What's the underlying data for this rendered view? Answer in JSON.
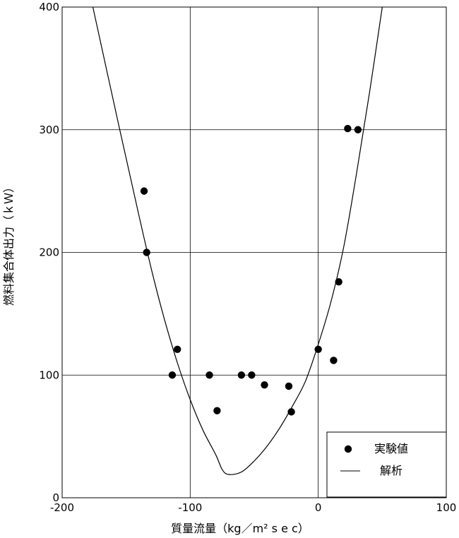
{
  "chart_data": {
    "type": "scatter",
    "title": "",
    "xlabel": "質量流量（kg／m² s e c）",
    "ylabel": "燃料集合体出力（ｋＷ）",
    "xlim": [
      -200,
      100
    ],
    "ylim": [
      0,
      400
    ],
    "xticks": [
      -200,
      -100,
      0,
      100
    ],
    "yticks": [
      0,
      100,
      200,
      300,
      400
    ],
    "grid": true,
    "legend_position": "bottom-right",
    "series": [
      {
        "name": "実験値",
        "kind": "scatter",
        "points": [
          {
            "x": -136,
            "y": 250
          },
          {
            "x": -134,
            "y": 200
          },
          {
            "x": -114,
            "y": 100
          },
          {
            "x": -110,
            "y": 121
          },
          {
            "x": -85,
            "y": 100
          },
          {
            "x": -79,
            "y": 71
          },
          {
            "x": -60,
            "y": 100
          },
          {
            "x": -52,
            "y": 100
          },
          {
            "x": -42,
            "y": 92
          },
          {
            "x": -23,
            "y": 91
          },
          {
            "x": -21,
            "y": 70
          },
          {
            "x": 0,
            "y": 121
          },
          {
            "x": 12,
            "y": 112
          },
          {
            "x": 16,
            "y": 176
          },
          {
            "x": 23,
            "y": 301
          },
          {
            "x": 31,
            "y": 300
          }
        ]
      },
      {
        "name": "解析",
        "kind": "line",
        "points": [
          {
            "x": -176,
            "y": 400
          },
          {
            "x": -155,
            "y": 300
          },
          {
            "x": -140,
            "y": 230
          },
          {
            "x": -130,
            "y": 185
          },
          {
            "x": -120,
            "y": 145
          },
          {
            "x": -110,
            "y": 110
          },
          {
            "x": -100,
            "y": 80
          },
          {
            "x": -90,
            "y": 55
          },
          {
            "x": -80,
            "y": 35
          },
          {
            "x": -75,
            "y": 23
          },
          {
            "x": -70,
            "y": 19
          },
          {
            "x": -60,
            "y": 21
          },
          {
            "x": -50,
            "y": 30
          },
          {
            "x": -40,
            "y": 42
          },
          {
            "x": -30,
            "y": 57
          },
          {
            "x": -20,
            "y": 75
          },
          {
            "x": -10,
            "y": 95
          },
          {
            "x": 0,
            "y": 125
          },
          {
            "x": 10,
            "y": 160
          },
          {
            "x": 20,
            "y": 205
          },
          {
            "x": 30,
            "y": 265
          },
          {
            "x": 40,
            "y": 330
          },
          {
            "x": 50,
            "y": 400
          }
        ]
      }
    ]
  }
}
